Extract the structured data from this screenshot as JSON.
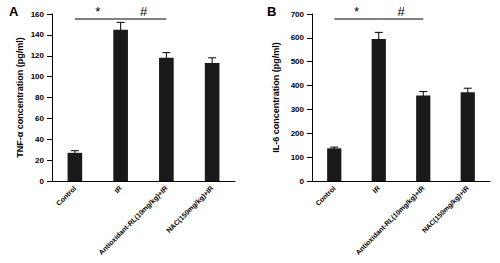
{
  "chart_data": [
    {
      "type": "bar",
      "title": "A",
      "ylabel": "TNF-α concentration (pg/ml)",
      "categories": [
        "Control",
        "IR",
        "Antioxidant-RL(10mg/kg)+IR",
        "NAC(150mg/kg)+IR"
      ],
      "values": [
        27,
        145,
        118,
        113
      ],
      "errors": [
        2,
        7,
        5,
        5
      ],
      "color": "#1a1a1a",
      "ylim": [
        0,
        160
      ],
      "yticks": [
        0,
        20,
        40,
        60,
        80,
        100,
        120,
        140,
        160
      ],
      "grid": false,
      "annotations": [
        {
          "text": "*",
          "from": "Control",
          "to": "IR"
        },
        {
          "text": "#",
          "from": "IR",
          "to": "Antioxidant-RL(10mg/kg)+IR"
        }
      ]
    },
    {
      "type": "bar",
      "title": "B",
      "ylabel": "IL-6 concentration (pg/ml)",
      "categories": [
        "Control",
        "IR",
        "Antioxidant-RL(10mg/kg)+IR",
        "NAC(150mg/kg)+IR"
      ],
      "values": [
        137,
        595,
        358,
        372
      ],
      "errors": [
        5,
        28,
        17,
        17
      ],
      "color": "#1a1a1a",
      "ylim": [
        0,
        700
      ],
      "yticks": [
        0,
        100,
        200,
        300,
        400,
        500,
        600,
        700
      ],
      "grid": false,
      "annotations": [
        {
          "text": "*",
          "from": "Control",
          "to": "IR"
        },
        {
          "text": "#",
          "from": "IR",
          "to": "Antioxidant-RL(10mg/kg)+IR"
        }
      ]
    }
  ]
}
